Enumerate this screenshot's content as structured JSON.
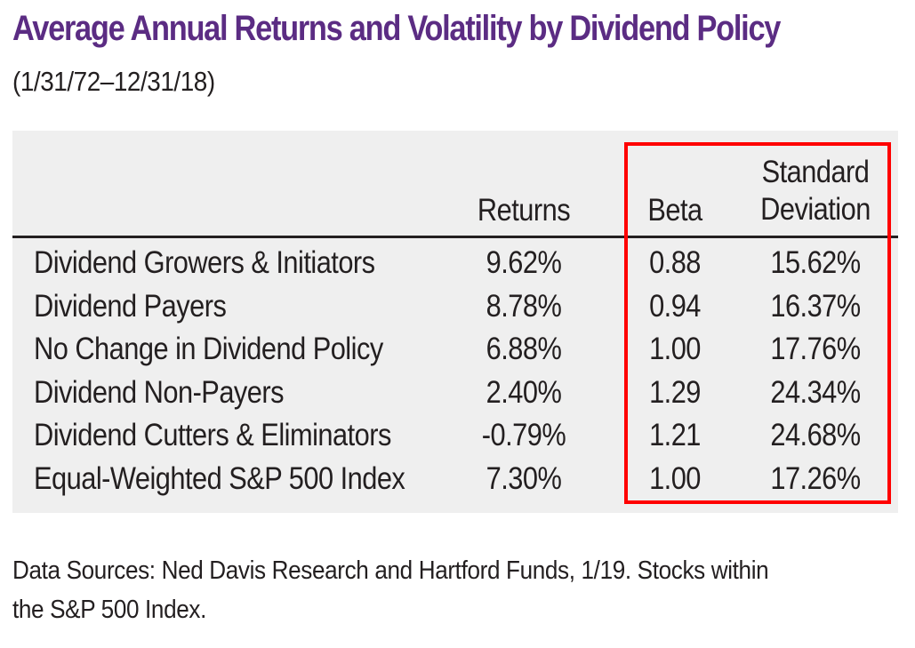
{
  "chart_data": {
    "type": "table",
    "title": "Average Annual Returns and Volatility by Dividend Policy",
    "subtitle": "(1/31/72–12/31/18)",
    "columns": {
      "returns": "Returns",
      "beta": "Beta",
      "sd_line1": "Standard",
      "sd_line2": "Deviation"
    },
    "rows": [
      {
        "label": "Dividend Growers & Initiators",
        "returns": "9.62%",
        "beta": "0.88",
        "sd": "15.62%"
      },
      {
        "label": "Dividend Payers",
        "returns": "8.78%",
        "beta": "0.94",
        "sd": "16.37%"
      },
      {
        "label": "No Change in Dividend Policy",
        "returns": "6.88%",
        "beta": "1.00",
        "sd": "17.76%"
      },
      {
        "label": "Dividend Non-Payers",
        "returns": "2.40%",
        "beta": "1.29",
        "sd": "24.34%"
      },
      {
        "label": "Dividend Cutters & Eliminators",
        "returns": "-0.79%",
        "beta": "1.21",
        "sd": "24.68%"
      },
      {
        "label": "Equal-Weighted S&P 500 Index",
        "returns": "7.30%",
        "beta": "1.00",
        "sd": "17.26%"
      }
    ],
    "source": "Data Sources: Ned Davis Research and Hartford Funds, 1/19.  Stocks within the S&P 500 Index."
  },
  "colors": {
    "title": "#5b2c83",
    "text": "#231f20",
    "panel": "#efefef",
    "highlight": "#ff0000"
  }
}
